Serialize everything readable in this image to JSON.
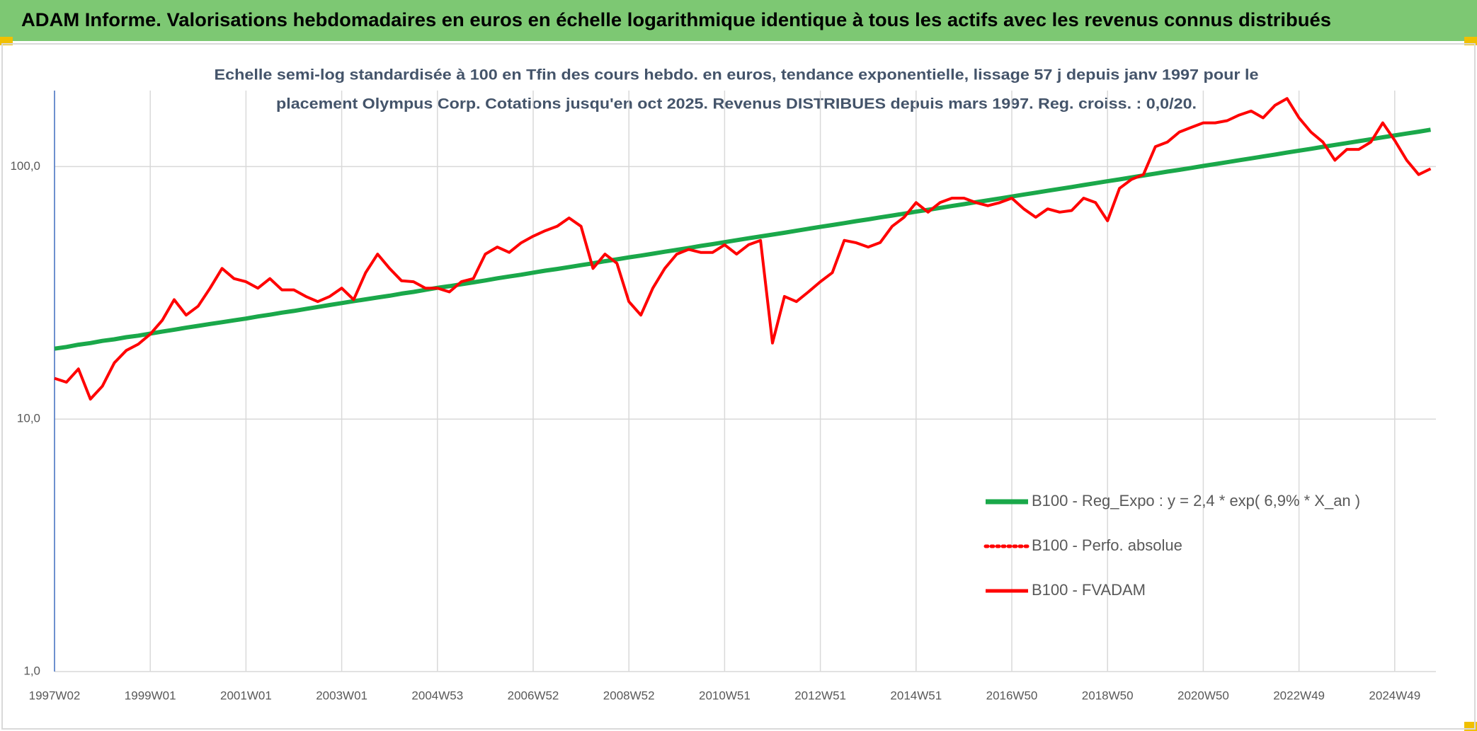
{
  "chart_data": {
    "type": "line",
    "header": "ADAM Informe. Valorisations hebdomadaires en euros en échelle logarithmique identique à tous les actifs avec les revenus connus distribués",
    "title_lines": [
      "Echelle semi-log standardisée à 100 en Tfin des cours hebdo. en euros, tendance exponentielle, lissage 57 j depuis janv 1997 pour le",
      "placement Olympus Corp. Cotations jusqu'en oct 2025. Revenus DISTRIBUES depuis mars 1997. Reg. croiss. : 0,0/20."
    ],
    "log_scale": true,
    "grid": true,
    "legend": "lower right",
    "ylim": [
      1,
      200
    ],
    "yticks": [
      {
        "value": 1,
        "label": "1,0"
      },
      {
        "value": 10,
        "label": "10,0"
      },
      {
        "value": 100,
        "label": "100,0"
      }
    ],
    "categories": [
      "1997W02",
      null,
      null,
      null,
      null,
      null,
      null,
      null,
      "1999W01",
      null,
      null,
      null,
      null,
      null,
      null,
      null,
      "2001W01",
      null,
      null,
      null,
      null,
      null,
      null,
      null,
      "2003W01",
      null,
      null,
      null,
      null,
      null,
      null,
      null,
      "2004W53",
      null,
      null,
      null,
      null,
      null,
      null,
      null,
      "2006W52",
      null,
      null,
      null,
      null,
      null,
      null,
      null,
      "2008W52",
      null,
      null,
      null,
      null,
      null,
      null,
      null,
      "2010W51",
      null,
      null,
      null,
      null,
      null,
      null,
      null,
      "2012W51",
      null,
      null,
      null,
      null,
      null,
      null,
      null,
      "2014W51",
      null,
      null,
      null,
      null,
      null,
      null,
      null,
      "2016W50",
      null,
      null,
      null,
      null,
      null,
      null,
      null,
      "2018W50",
      null,
      null,
      null,
      null,
      null,
      null,
      null,
      "2020W50",
      null,
      null,
      null,
      null,
      null,
      null,
      null,
      "2022W49",
      null,
      null,
      null,
      null,
      null,
      null,
      null,
      "2024W49",
      null,
      null,
      null
    ],
    "series": [
      {
        "name": "B100 - Reg_Expo : y = 2,4 * exp( 6,9% *  X_an )",
        "color": "#1aa84a",
        "style": "solid",
        "width": 6,
        "values": [
          19.0,
          19.3,
          19.7,
          20.0,
          20.4,
          20.7,
          21.1,
          21.4,
          21.8,
          22.2,
          22.6,
          23.0,
          23.4,
          23.8,
          24.2,
          24.6,
          25.0,
          25.5,
          25.9,
          26.4,
          26.8,
          27.3,
          27.8,
          28.3,
          28.8,
          29.3,
          29.8,
          30.3,
          30.8,
          31.4,
          31.9,
          32.5,
          33.1,
          33.6,
          34.2,
          34.8,
          35.4,
          36.1,
          36.7,
          37.3,
          38.0,
          38.7,
          39.3,
          40.0,
          40.7,
          41.4,
          42.2,
          42.9,
          43.7,
          44.4,
          45.2,
          46.0,
          46.8,
          47.6,
          48.5,
          49.3,
          50.2,
          51.1,
          52.0,
          52.9,
          53.8,
          54.7,
          55.7,
          56.7,
          57.7,
          58.7,
          59.7,
          60.8,
          61.8,
          62.9,
          64.0,
          65.1,
          66.3,
          67.4,
          68.6,
          69.8,
          71.0,
          72.3,
          73.5,
          74.8,
          76.1,
          77.5,
          78.8,
          80.2,
          81.6,
          83.0,
          84.5,
          86.0,
          87.5,
          89.0,
          90.6,
          92.2,
          93.8,
          95.5,
          97.1,
          98.8,
          100.6,
          102.3,
          104.1,
          106.0,
          107.8,
          109.7,
          111.6,
          113.6,
          115.6,
          117.6,
          119.7,
          121.8,
          123.9,
          126.1,
          128.3,
          130.6,
          132.8,
          135.2,
          137.5,
          140.0
        ]
      },
      {
        "name": "B100 - Perfo. absolue",
        "color": "#ff0000",
        "style": "dotted",
        "width": 4,
        "values": [
          null,
          null,
          null,
          null,
          null,
          null,
          null,
          null,
          null,
          null,
          null,
          null,
          null,
          null,
          null,
          null,
          null,
          null,
          null,
          null,
          null,
          null,
          null,
          null,
          null,
          null,
          null,
          null,
          null,
          null,
          null,
          null,
          null,
          null,
          null,
          null,
          null,
          null,
          null,
          null,
          null,
          null,
          null,
          null,
          null,
          null,
          null,
          null,
          null,
          null,
          null,
          null,
          null,
          null,
          null,
          null,
          null,
          null,
          null,
          null,
          null,
          null,
          null,
          null,
          null,
          null,
          null,
          null,
          null,
          null,
          null,
          null,
          null,
          null,
          null,
          null,
          null,
          null,
          null,
          null,
          null,
          null,
          null,
          null,
          null,
          null,
          null,
          null,
          null,
          null,
          null,
          null,
          null,
          null,
          null,
          null,
          null,
          null,
          null,
          null,
          null,
          null,
          null,
          null,
          null,
          null,
          null,
          null,
          null,
          null,
          null,
          null,
          null,
          null,
          null,
          null
        ]
      },
      {
        "name": "B100 - FVADAM",
        "color": "#ff0000",
        "style": "solid",
        "width": 4,
        "values": [
          14.5,
          14,
          15.8,
          12,
          13.5,
          16.7,
          18.7,
          19.8,
          21.7,
          24.6,
          29.7,
          25.8,
          28,
          33,
          39.5,
          36,
          35,
          33,
          36,
          32.5,
          32.5,
          30.6,
          29.2,
          30.6,
          33,
          29.7,
          38,
          45,
          39.5,
          35.3,
          35,
          33,
          33,
          31.9,
          35,
          36,
          45,
          48,
          45.7,
          49.9,
          53,
          55.7,
          58,
          62.6,
          58,
          39.5,
          45,
          41.4,
          29.2,
          25.8,
          33,
          39.5,
          45,
          47,
          45.7,
          45.7,
          49,
          45,
          49,
          51,
          20,
          30.6,
          29.2,
          31.9,
          35,
          38,
          51,
          49.9,
          48,
          50,
          58,
          63,
          72,
          66,
          72,
          75,
          75,
          72,
          70,
          72,
          75,
          68,
          63,
          68,
          66,
          67,
          75,
          72,
          61,
          82,
          89,
          93,
          120,
          125,
          137,
          143,
          149,
          149,
          152,
          160,
          166,
          156,
          175,
          186,
          156,
          137,
          125,
          106,
          117,
          117,
          125,
          149,
          127,
          106,
          93,
          98
        ]
      }
    ]
  }
}
